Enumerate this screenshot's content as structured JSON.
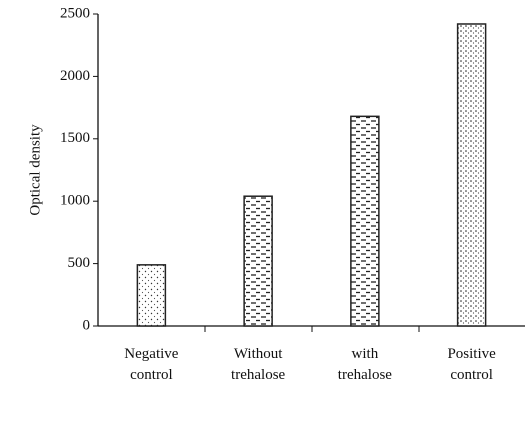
{
  "chart_data": {
    "type": "bar",
    "y_label": "Optical density",
    "categories": [
      "Negative control",
      "Without trehalose",
      "with trehalose",
      "Positive control"
    ],
    "values": [
      490,
      1040,
      1680,
      2420
    ],
    "color": "#222",
    "ylim": [
      0,
      2500
    ],
    "yticks": [
      0,
      500,
      1000,
      1500,
      2000,
      2500
    ],
    "grid": false
  }
}
